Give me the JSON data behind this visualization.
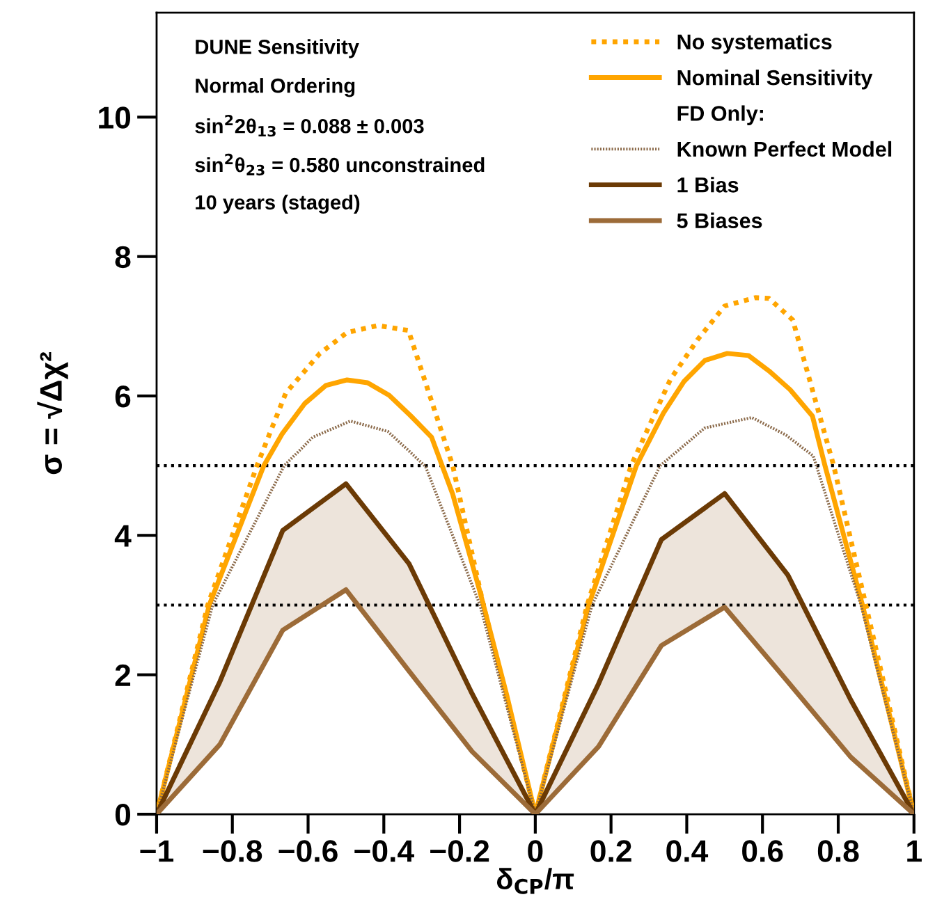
{
  "chart_data": {
    "type": "line",
    "xlabel": "δ$_{CP}$/π",
    "ylabel": "σ = √Δχ²",
    "xlim": [
      -1,
      1
    ],
    "ylim": [
      0,
      11.5
    ],
    "xticks": [
      {
        "value": -1,
        "label": "−1"
      },
      {
        "value": -0.8,
        "label": "−0.8"
      },
      {
        "value": -0.6,
        "label": "−0.6"
      },
      {
        "value": -0.4,
        "label": "−0.4"
      },
      {
        "value": -0.2,
        "label": "−0.2"
      },
      0,
      0.2,
      0.4,
      0.6,
      0.8,
      1
    ],
    "yticks": [
      0,
      2,
      4,
      6,
      8,
      10
    ],
    "grid": false,
    "legend": "top right",
    "series": [
      {
        "name": "No systematics",
        "color": "#ffa500",
        "line_style": "dotted",
        "x": [
          -1,
          -0.865,
          -0.735,
          -0.659,
          -0.569,
          -0.497,
          -0.416,
          -0.335,
          -0.218,
          -0.137,
          0,
          0.137,
          0.253,
          0.357,
          0.429,
          0.5,
          0.581,
          0.617,
          0.68,
          0.788,
          0.873,
          1
        ],
        "values": [
          0,
          3.0,
          5.0,
          6.04,
          6.61,
          6.91,
          7.01,
          6.94,
          5.0,
          3.0,
          0,
          3.0,
          5.0,
          6.24,
          6.81,
          7.29,
          7.41,
          7.4,
          7.09,
          5.0,
          3.0,
          0
        ]
      },
      {
        "name": "Nominal Sensitivity",
        "color": "#ffa500",
        "line_style": "solid",
        "x": [
          -1,
          -0.861,
          -0.717,
          -0.668,
          -0.609,
          -0.553,
          -0.497,
          -0.443,
          -0.386,
          -0.33,
          -0.274,
          -0.218,
          -0.146,
          -0.075,
          0,
          0.141,
          0.267,
          0.339,
          0.393,
          0.448,
          0.507,
          0.563,
          0.617,
          0.673,
          0.732,
          0.765,
          0.864,
          1
        ],
        "values": [
          0,
          3.0,
          5.0,
          5.46,
          5.89,
          6.15,
          6.23,
          6.19,
          6.01,
          5.72,
          5.41,
          4.59,
          3.19,
          1.7,
          0,
          3.0,
          5.0,
          5.76,
          6.21,
          6.51,
          6.61,
          6.58,
          6.36,
          6.09,
          5.71,
          5.0,
          3.0,
          0
        ]
      },
      {
        "name": "FD Only:"
      },
      {
        "name": "Known Perfect Model",
        "color": "#8b6a4a",
        "line_style": "dotted",
        "x": [
          -1,
          -0.852,
          -0.663,
          -0.587,
          -0.488,
          -0.389,
          -0.29,
          -0.146,
          0,
          0.15,
          0.33,
          0.447,
          0.572,
          0.662,
          0.734,
          0.86,
          1
        ],
        "values": [
          0,
          3.0,
          5.0,
          5.41,
          5.64,
          5.49,
          4.99,
          3.0,
          0,
          3.0,
          5.0,
          5.54,
          5.69,
          5.44,
          5.14,
          3.0,
          0
        ]
      },
      {
        "name": "1 Bias",
        "color": "#6b3a05",
        "line_style": "solid",
        "x": [
          -1,
          -0.833,
          -0.667,
          -0.5,
          -0.333,
          -0.167,
          0,
          0.167,
          0.333,
          0.5,
          0.667,
          0.833,
          1
        ],
        "values": [
          0,
          1.9,
          4.07,
          4.74,
          3.59,
          1.73,
          0,
          1.87,
          3.94,
          4.6,
          3.43,
          1.64,
          0
        ]
      },
      {
        "name": "5 Biases",
        "color": "#9c6b38",
        "line_style": "solid",
        "x": [
          -1,
          -0.833,
          -0.667,
          -0.5,
          -0.333,
          -0.167,
          0,
          0.167,
          0.333,
          0.5,
          0.667,
          0.833,
          1
        ],
        "values": [
          0,
          1.0,
          2.64,
          3.22,
          2.05,
          0.9,
          0,
          0.97,
          2.42,
          2.97,
          1.9,
          0.82,
          0
        ],
        "lower": [
          0,
          1.0,
          2.64,
          3.22,
          2.05,
          0.9,
          0,
          0.97,
          2.42,
          2.97,
          1.9,
          0.82,
          0
        ],
        "upper": [
          0,
          1.9,
          4.07,
          4.74,
          3.59,
          1.73,
          0,
          1.87,
          3.94,
          4.6,
          3.43,
          1.64,
          0
        ]
      }
    ],
    "ref_lines": [
      {
        "axis": "y",
        "value": 5,
        "color": "#000000",
        "line_style": "dotted"
      },
      {
        "axis": "y",
        "value": 3,
        "color": "#000000",
        "line_style": "dotted"
      }
    ],
    "annotations": [
      "DUNE Sensitivity",
      "Normal Ordering",
      "sin$^{2}$2θ$_{13}$ = 0.088 ± 0.003",
      "sin$^{2}$θ$_{23}$ = 0.580 unconstrained",
      "10 years (staged)"
    ]
  }
}
